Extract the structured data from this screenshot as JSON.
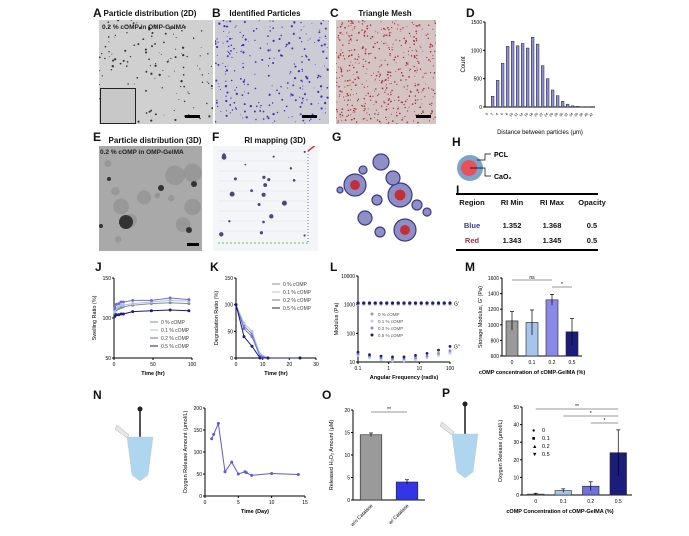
{
  "panels": {
    "A": {
      "label": "A",
      "title": "Particle distribution (2D)",
      "overlay": "0.2 % cOMP in OMP-GelMA"
    },
    "B": {
      "label": "B",
      "title": "Identified Particles"
    },
    "C": {
      "label": "C",
      "title": "Triangle Mesh"
    },
    "D": {
      "label": "D"
    },
    "E": {
      "label": "E",
      "title": "Particle distribution (3D)",
      "overlay": "0.2 % cOMP in OMP-GelMA"
    },
    "F": {
      "label": "F",
      "title": "RI mapping (3D)"
    },
    "G": {
      "label": "G"
    },
    "H": {
      "label": "H",
      "outer": "PCL",
      "inner": "CaO₂"
    },
    "I": {
      "label": "I",
      "headers": [
        "Region",
        "RI Min",
        "RI Max",
        "Opacity"
      ],
      "rows": [
        {
          "region": "Blue",
          "ri_min": "1.352",
          "ri_max": "1.368",
          "opacity": "0.5"
        },
        {
          "region": "Red",
          "ri_min": "1.343",
          "ri_max": "1.345",
          "opacity": "0.5"
        }
      ],
      "colors": {
        "Blue": "#3b3b8f",
        "Red": "#9a3040"
      }
    },
    "J": {
      "label": "J"
    },
    "K": {
      "label": "K"
    },
    "L": {
      "label": "L"
    },
    "M": {
      "label": "M"
    },
    "N": {
      "label": "N"
    },
    "O": {
      "label": "O"
    },
    "P": {
      "label": "P"
    }
  },
  "chart_data": [
    {
      "id": "D",
      "type": "bar",
      "title": "",
      "xlabel": "Distance between particles (μm)",
      "ylabel": "Count",
      "ylim": [
        0,
        1500
      ],
      "yticks": [
        0,
        500,
        1000,
        1500
      ],
      "categories": [
        "0",
        "2",
        "4",
        "6",
        "8",
        "10",
        "12",
        "14",
        "16",
        "18",
        "20",
        "22",
        "24",
        "26",
        "28",
        "30",
        "32",
        "34",
        "36",
        "38",
        "40",
        "42"
      ],
      "values": [
        0,
        190,
        470,
        770,
        1070,
        1160,
        1080,
        1120,
        1040,
        1230,
        1110,
        730,
        500,
        300,
        200,
        100,
        50,
        20,
        10,
        5,
        2,
        0
      ],
      "color": "#8a8fe0"
    },
    {
      "id": "J",
      "type": "line",
      "xlabel": "Time  (hr)",
      "ylabel": "Swelling Ratio (%)",
      "xlim": [
        0,
        100
      ],
      "ylim": [
        50,
        150
      ],
      "xticks": [
        0,
        50,
        100
      ],
      "yticks": [
        50,
        100,
        150
      ],
      "x": [
        1,
        3,
        6,
        9,
        12,
        24,
        48,
        72,
        96
      ],
      "series": [
        {
          "name": "0 % cOMP",
          "color": "#8c8c8c",
          "values": [
            106,
            110,
            112,
            113,
            114,
            116,
            118,
            119,
            118
          ]
        },
        {
          "name": "0.1 % cOMP",
          "color": "#a7c4ec",
          "values": [
            108,
            112,
            114,
            116,
            116,
            118,
            120,
            122,
            121
          ]
        },
        {
          "name": "0.2 % cOMP",
          "color": "#6f6fe0",
          "values": [
            112,
            117,
            118,
            120,
            120,
            122,
            122,
            125,
            123
          ]
        },
        {
          "name": "0.5 % cOMP",
          "color": "#1c1c7a",
          "values": [
            102,
            104,
            104,
            105,
            105,
            108,
            109,
            110,
            109
          ]
        }
      ],
      "legend": "bottom-right"
    },
    {
      "id": "K",
      "type": "line",
      "xlabel": "Time  (hr)",
      "ylabel": "Degradation Ratio (%)",
      "xlim": [
        0,
        30
      ],
      "ylim": [
        0,
        150
      ],
      "xticks": [
        0,
        10,
        20,
        30
      ],
      "yticks": [
        0,
        50,
        100,
        150
      ],
      "x": [
        0,
        3,
        6,
        9,
        12,
        24
      ],
      "series": [
        {
          "name": "0 % cOMP",
          "color": "#8c8c8c",
          "values": [
            100,
            60,
            45,
            5,
            0,
            0
          ]
        },
        {
          "name": "0.1 % cOMP",
          "color": "#a7c4ec",
          "values": [
            100,
            65,
            50,
            8,
            0,
            0
          ]
        },
        {
          "name": "0.2 % cOMP",
          "color": "#6f6fe0",
          "values": [
            100,
            55,
            40,
            3,
            0,
            0
          ]
        },
        {
          "name": "0.5 % cOMP",
          "color": "#1c1c7a",
          "values": [
            100,
            40,
            22,
            0,
            0,
            0
          ]
        }
      ],
      "legend": "top-right"
    },
    {
      "id": "L",
      "type": "scatter",
      "xlabel": "Angular Frequency  (rad/s)",
      "ylabel": "Modulus  (Pa)",
      "xscale": "log",
      "yscale": "log",
      "xlim": [
        0.1,
        100
      ],
      "ylim": [
        10,
        10000
      ],
      "xticks": [
        "0.1",
        "1",
        "10",
        "100"
      ],
      "yticks": [
        "10",
        "100",
        "1000",
        "10000"
      ],
      "annotations": [
        "G'",
        "G''"
      ],
      "series": [
        {
          "name": "0 % cOMP",
          "color": "#9a9a9a",
          "Gp": 1050,
          "Gpp": [
            18,
            15,
            13,
            12,
            12,
            13,
            15,
            18,
            22
          ]
        },
        {
          "name": "0.1 % cOMP",
          "color": "#b8d0f0",
          "Gp": 1080,
          "Gpp": [
            17,
            14,
            12,
            11,
            11,
            12,
            14,
            17,
            20
          ]
        },
        {
          "name": "0.2 % cOMP",
          "color": "#8a8ae6",
          "Gp": 1100,
          "Gpp": [
            19,
            16,
            14,
            13,
            13,
            14,
            16,
            20,
            25
          ]
        },
        {
          "name": "0.5 % cOMP",
          "color": "#1c1c7a",
          "Gp": 1150,
          "Gpp": [
            22,
            18,
            16,
            15,
            15,
            17,
            20,
            26,
            35
          ]
        }
      ],
      "legend": "center-left"
    },
    {
      "id": "M",
      "type": "bar",
      "xlabel": "cOMP concentration of cOMP-GelMA  (%)",
      "ylabel": "Storage  Modulus,  G' (Pa)",
      "ylim": [
        600,
        1600
      ],
      "yticks": [
        600,
        800,
        1000,
        1200,
        1400,
        1600
      ],
      "categories": [
        "0",
        "0.1",
        "0.2",
        "0.5"
      ],
      "values": [
        1050,
        1030,
        1320,
        910
      ],
      "errors": [
        120,
        160,
        70,
        170
      ],
      "colors": [
        "#9a9a9a",
        "#a7c4ec",
        "#8a8ae6",
        "#1c1c7a"
      ],
      "significance": [
        {
          "from": "0",
          "to": "0.2",
          "label": "ns"
        },
        {
          "from": "0.2",
          "to": "0.5",
          "label": "*"
        }
      ]
    },
    {
      "id": "N",
      "type": "line",
      "xlabel": "Time  (Day)",
      "ylabel": "Oxygen Release Amount (μmol/L)",
      "xlim": [
        0,
        15
      ],
      "ylim": [
        0,
        200
      ],
      "xticks": [
        0,
        5,
        10,
        15
      ],
      "yticks": [
        0,
        50,
        100,
        150,
        200
      ],
      "x": [
        1,
        1.3,
        2,
        3,
        4,
        5,
        6,
        6.2,
        7,
        10,
        14
      ],
      "values": [
        130,
        140,
        165,
        55,
        77,
        50,
        55,
        53,
        47,
        51,
        49
      ],
      "color": "#5b5be0"
    },
    {
      "id": "O",
      "type": "bar",
      "xlabel": "",
      "ylabel": "Released H₂O₂ Amount (μM)",
      "ylim": [
        0,
        20
      ],
      "yticks": [
        0,
        5,
        10,
        15,
        20
      ],
      "categories": [
        "w/o Catalase",
        "w/ Catalase"
      ],
      "values": [
        14.5,
        4.0
      ],
      "errors": [
        0.4,
        0.5
      ],
      "colors": [
        "#9a9a9a",
        "#3535e8"
      ],
      "significance": [
        {
          "from": "w/o Catalase",
          "to": "w/ Catalase",
          "label": "**"
        }
      ]
    },
    {
      "id": "P",
      "type": "bar",
      "xlabel": "cOMP  Concentration of cOMP-GelMA (%)",
      "ylabel": "Oxygen Release (μmol/L)",
      "ylim": [
        0,
        50
      ],
      "yticks": [
        0,
        10,
        20,
        30,
        40,
        50
      ],
      "categories": [
        "0",
        "0.1",
        "0.2",
        "0.5"
      ],
      "values": [
        0.5,
        2.5,
        5.0,
        24.0
      ],
      "errors": [
        0.5,
        1.0,
        2.5,
        13.0
      ],
      "colors": [
        "#9a9a9a",
        "#a7c4ec",
        "#6f6fe0",
        "#1c1c7a"
      ],
      "legend_entries": [
        {
          "symbol": "●",
          "label": "0"
        },
        {
          "symbol": "■",
          "label": "0.1"
        },
        {
          "symbol": "▲",
          "label": "0.2"
        },
        {
          "symbol": "▼",
          "label": "0.5"
        }
      ],
      "significance": [
        {
          "from": "0",
          "to": "0.5",
          "label": "**"
        },
        {
          "from": "0.1",
          "to": "0.5",
          "label": "*"
        },
        {
          "from": "0.2",
          "to": "0.5",
          "label": "*"
        }
      ]
    }
  ]
}
